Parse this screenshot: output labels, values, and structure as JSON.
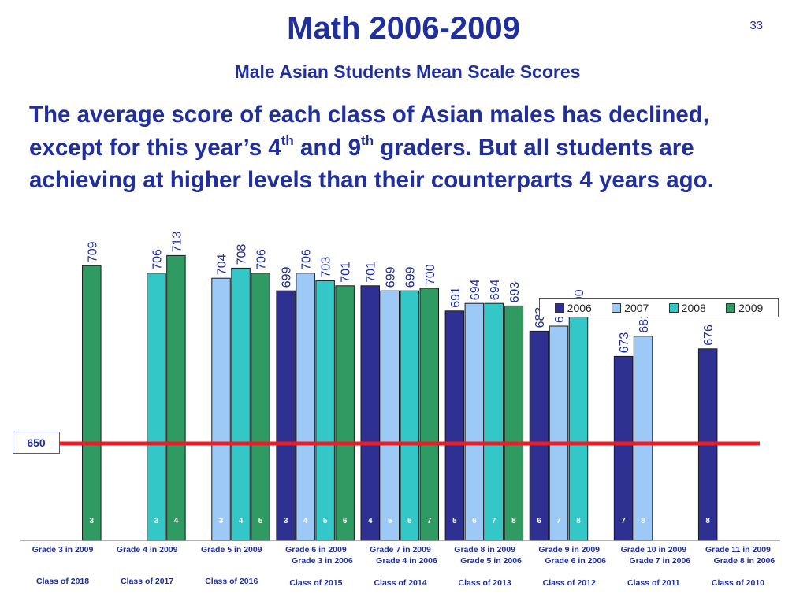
{
  "slide": {
    "title": "Math 2006-2009",
    "page_number": "33",
    "subtitle": "Male Asian Students Mean Scale Scores",
    "summary": {
      "part1": "The average score of each class of Asian males has declined, except for this year’s 4",
      "sup1": "th",
      "part2": " and 9",
      "sup2": "th",
      "part3": " graders. But all students are achieving at higher levels than their counterparts 4 years ago."
    }
  },
  "chart_data": {
    "type": "bar",
    "series": [
      {
        "name": "2006",
        "color": "#2e3192"
      },
      {
        "name": "2007",
        "color": "#9cc9f5"
      },
      {
        "name": "2008",
        "color": "#33c7c7"
      },
      {
        "name": "2009",
        "color": "#2f9a62"
      }
    ],
    "ylim": [
      600,
      715
    ],
    "reference_line": {
      "value": 650,
      "label": "650",
      "color": "#ee1c25"
    },
    "groups": [
      {
        "label": "Grade 3 in 2009",
        "sublabel": "",
        "class_label": "Class of 2018",
        "bars": [
          {
            "series": "2009",
            "value": 709,
            "grade": "3"
          }
        ]
      },
      {
        "label": "Grade 4 in 2009",
        "sublabel": "",
        "class_label": "Class of 2017",
        "bars": [
          {
            "series": "2008",
            "value": 706,
            "grade": "3"
          },
          {
            "series": "2009",
            "value": 713,
            "grade": "4"
          }
        ]
      },
      {
        "label": "Grade 5 in 2009",
        "sublabel": "",
        "class_label": "Class of 2016",
        "bars": [
          {
            "series": "2007",
            "value": 704,
            "grade": "3"
          },
          {
            "series": "2008",
            "value": 708,
            "grade": "4"
          },
          {
            "series": "2009",
            "value": 706,
            "grade": "5"
          }
        ]
      },
      {
        "label": "Grade 6 in 2009",
        "sublabel": "Grade 3 in 2006",
        "class_label": "Class of 2015",
        "bars": [
          {
            "series": "2006",
            "value": 699,
            "grade": "3"
          },
          {
            "series": "2007",
            "value": 706,
            "grade": "4"
          },
          {
            "series": "2008",
            "value": 703,
            "grade": "5"
          },
          {
            "series": "2009",
            "value": 701,
            "grade": "6"
          }
        ]
      },
      {
        "label": "Grade 7 in 2009",
        "sublabel": "Grade 4 in 2006",
        "class_label": "Class of 2014",
        "bars": [
          {
            "series": "2006",
            "value": 701,
            "grade": "4"
          },
          {
            "series": "2007",
            "value": 699,
            "grade": "5"
          },
          {
            "series": "2008",
            "value": 699,
            "grade": "6"
          },
          {
            "series": "2009",
            "value": 700,
            "grade": "7"
          }
        ]
      },
      {
        "label": "Grade 8 in 2009",
        "sublabel": "Grade 5 in 2006",
        "class_label": "Class of 2013",
        "bars": [
          {
            "series": "2006",
            "value": 691,
            "grade": "5"
          },
          {
            "series": "2007",
            "value": 694,
            "grade": "6"
          },
          {
            "series": "2008",
            "value": 694,
            "grade": "7"
          },
          {
            "series": "2009",
            "value": 693,
            "grade": "8"
          }
        ]
      },
      {
        "label": "Grade 9 in 2009",
        "sublabel": "Grade 6 in 2006",
        "class_label": "Class of 2012",
        "bars": [
          {
            "series": "2006",
            "value": 683,
            "grade": "6"
          },
          {
            "series": "2007",
            "value": 685,
            "grade": "7"
          },
          {
            "series": "2008",
            "value": 690,
            "grade": "8"
          }
        ]
      },
      {
        "label": "Grade 10 in 2009",
        "sublabel": "Grade 7 in 2006",
        "class_label": "Class of 2011",
        "bars": [
          {
            "series": "2006",
            "value": 673,
            "grade": "7"
          },
          {
            "series": "2007",
            "value": 681,
            "grade": "8"
          }
        ]
      },
      {
        "label": "Grade 11 in 2009",
        "sublabel": "Grade 8 in 2006",
        "class_label": "Class of 2010",
        "bars": [
          {
            "series": "2006",
            "value": 676,
            "grade": "8"
          }
        ]
      }
    ],
    "legend_position": "top-right",
    "grid": false
  }
}
